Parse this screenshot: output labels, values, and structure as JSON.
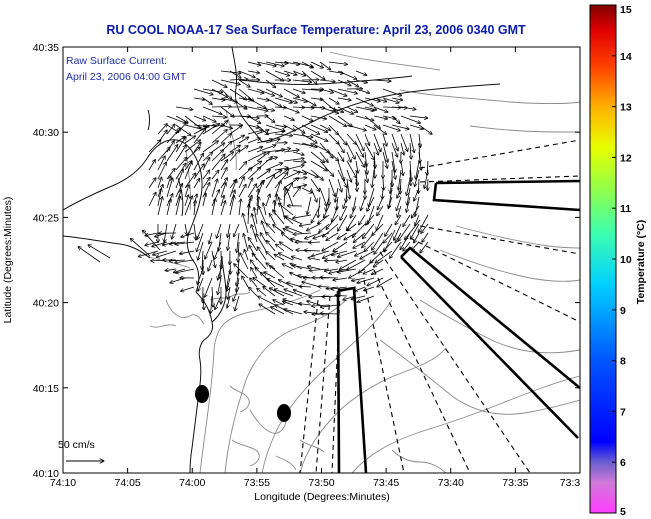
{
  "title": "RU COOL  NOAA-17  Sea Surface Temperature:  April 23, 2006 0340 GMT",
  "legend": {
    "line1": "Raw Surface Current:",
    "line2": "April 23, 2006 04:00 GMT"
  },
  "scale_label": "50 cm/s",
  "chart_data": {
    "type": "map",
    "xlabel": "Longitude (Degrees:Minutes)",
    "ylabel": "Latitude (Degrees:Minutes)",
    "x_ticks": [
      "74:10",
      "74:05",
      "74:00",
      "73:55",
      "73:50",
      "73:45",
      "73:40",
      "73:35",
      "73:3"
    ],
    "y_ticks": [
      "40:35",
      "40:30",
      "40:25",
      "40:20",
      "40:15",
      "40:10"
    ],
    "colorbar": {
      "label": "Temperature (°C)",
      "range": [
        5,
        15
      ],
      "ticks": [
        "15",
        "14",
        "13",
        "12",
        "11",
        "10",
        "9",
        "8",
        "7",
        "6",
        "5"
      ]
    }
  }
}
